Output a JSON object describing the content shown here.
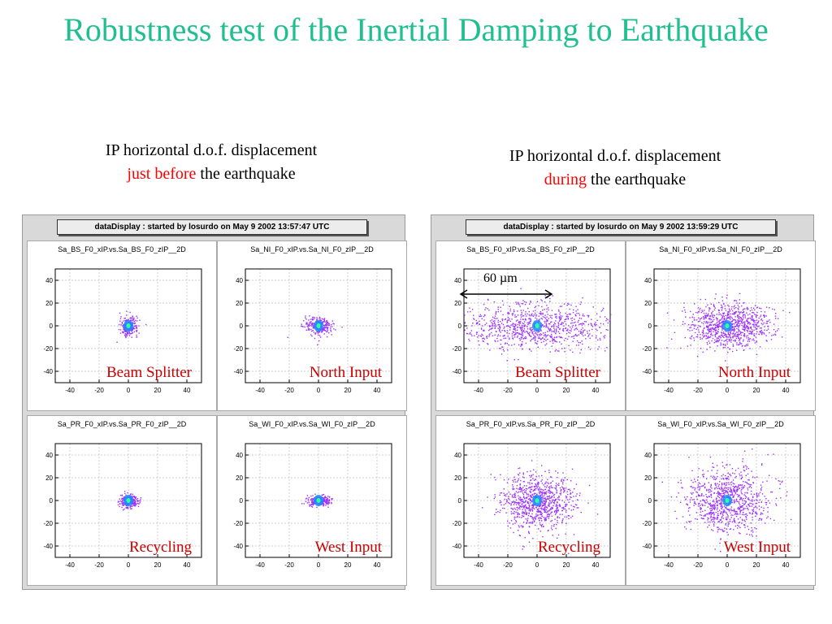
{
  "title": "Robustness test of the Inertial Damping to Earthquake",
  "captions": {
    "left": {
      "line1": "IP horizontal d.o.f. displacement",
      "highlight": "just before",
      "rest": "the earthquake"
    },
    "right": {
      "line1": "IP horizontal d.o.f. displacement",
      "highlight": "during",
      "rest": "the earthquake"
    }
  },
  "colors": {
    "title": "#1fbf8f",
    "highlight": "#ff0000",
    "panel_label": "#cc0000",
    "scatter": "#9b30ff",
    "core": "#1a8cff"
  },
  "annotation": {
    "label": "60 µm"
  },
  "chart_data": [
    {
      "type": "scatter",
      "header": "dataDisplay : started by losurdo on May  9 2002 13:57:47 UTC",
      "panels": [
        {
          "name": "Sa_BS_F0_xIP.vs.Sa_BS_F0_zIP__2D",
          "label": "Beam Splitter",
          "center": [
            0,
            0
          ],
          "spread": [
            3,
            4
          ]
        },
        {
          "name": "Sa_NI_F0_xIP.vs.Sa_NI_F0_zIP__2D",
          "label": "North Input",
          "center": [
            0,
            0
          ],
          "spread": [
            5,
            4
          ]
        },
        {
          "name": "Sa_PR_F0_xIP.vs.Sa_PR_F0_zIP__2D",
          "label": "Recycling",
          "center": [
            0,
            0
          ],
          "spread": [
            3,
            3
          ]
        },
        {
          "name": "Sa_WI_F0_xIP.vs.Sa_WI_F0_zIP__2D",
          "label": "West Input",
          "center": [
            0,
            0
          ],
          "spread": [
            4,
            2
          ]
        }
      ],
      "xlim": [
        -50,
        50
      ],
      "ylim": [
        -50,
        50
      ],
      "xticks": [
        -40,
        -20,
        0,
        20,
        40
      ],
      "yticks": [
        40,
        20,
        0,
        -20,
        -40
      ],
      "grid": true
    },
    {
      "type": "scatter",
      "header": "dataDisplay : started by losurdo on May  9 2002 13:59:29 UTC",
      "panels": [
        {
          "name": "Sa_BS_F0_xIP.vs.Sa_BS_F0_zIP__2D",
          "label": "Beam Splitter",
          "center": [
            0,
            0
          ],
          "spread": [
            25,
            10
          ]
        },
        {
          "name": "Sa_NI_F0_xIP.vs.Sa_NI_F0_zIP__2D",
          "label": "North Input",
          "center": [
            0,
            0
          ],
          "spread": [
            14,
            10
          ]
        },
        {
          "name": "Sa_PR_F0_xIP.vs.Sa_PR_F0_zIP__2D",
          "label": "Recycling",
          "center": [
            0,
            0
          ],
          "spread": [
            12,
            12
          ]
        },
        {
          "name": "Sa_WI_F0_xIP.vs.Sa_WI_F0_zIP__2D",
          "label": "West Input",
          "center": [
            0,
            0
          ],
          "spread": [
            14,
            14
          ]
        }
      ],
      "xlim": [
        -50,
        50
      ],
      "ylim": [
        -50,
        50
      ],
      "xticks": [
        -40,
        -20,
        0,
        20,
        40
      ],
      "yticks": [
        40,
        20,
        0,
        -20,
        -40
      ],
      "grid": true
    }
  ]
}
